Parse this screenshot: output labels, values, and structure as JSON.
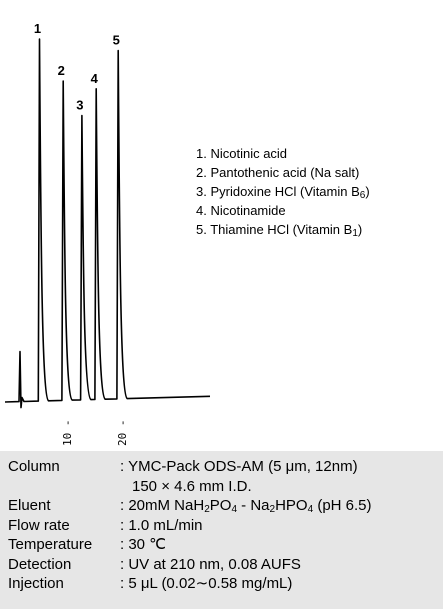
{
  "chart_data": {
    "type": "line",
    "title": "",
    "xlabel": "",
    "ylabel": "",
    "x_ticks": [
      "10",
      "20"
    ],
    "xlim": [
      0,
      25
    ],
    "ylim": [
      0,
      100
    ],
    "peaks": [
      {
        "label": "1",
        "rt": 4.1,
        "height": 95
      },
      {
        "label": "2",
        "rt": 8.4,
        "height": 84
      },
      {
        "label": "3",
        "rt": 11.8,
        "height": 75
      },
      {
        "label": "4",
        "rt": 14.4,
        "height": 82
      },
      {
        "label": "5",
        "rt": 18.4,
        "height": 92
      }
    ]
  },
  "legend": [
    {
      "text": "1. Nicotinic acid",
      "sub": ""
    },
    {
      "text": "2. Pantothenic acid (Na salt)",
      "sub": ""
    },
    {
      "text": "3. Pyridoxine HCl (Vitamin B",
      "sub": "6",
      "after": ")"
    },
    {
      "text": "4. Nicotinamide",
      "sub": ""
    },
    {
      "text": "5. Thiamine HCl (Vitamin B",
      "sub": "1",
      "after": ")"
    }
  ],
  "conditions": {
    "column_label": "Column",
    "column_value": ": YMC-Pack ODS-AM (5 μm, 12nm)",
    "column_value2": "150 × 4.6 mm I.D.",
    "eluent_label": "Eluent",
    "eluent_a": ": 20mM NaH",
    "eluent_a_sub1": "2",
    "eluent_a_mid": "PO",
    "eluent_a_sub2": "4",
    "eluent_b": " - Na",
    "eluent_b_sub1": "2",
    "eluent_b_mid": "HPO",
    "eluent_b_sub2": "4",
    "eluent_end": " (pH 6.5)",
    "flow_label": "Flow rate",
    "flow_value": ": 1.0 mL/min",
    "temp_label": "Temperature",
    "temp_value": ": 30 ℃",
    "detection_label": "Detection",
    "detection_value": ": UV at 210 nm, 0.08 AUFS",
    "injection_label": "Injection",
    "injection_value": ": 5 μL (0.02∼0.58 mg/mL)"
  }
}
